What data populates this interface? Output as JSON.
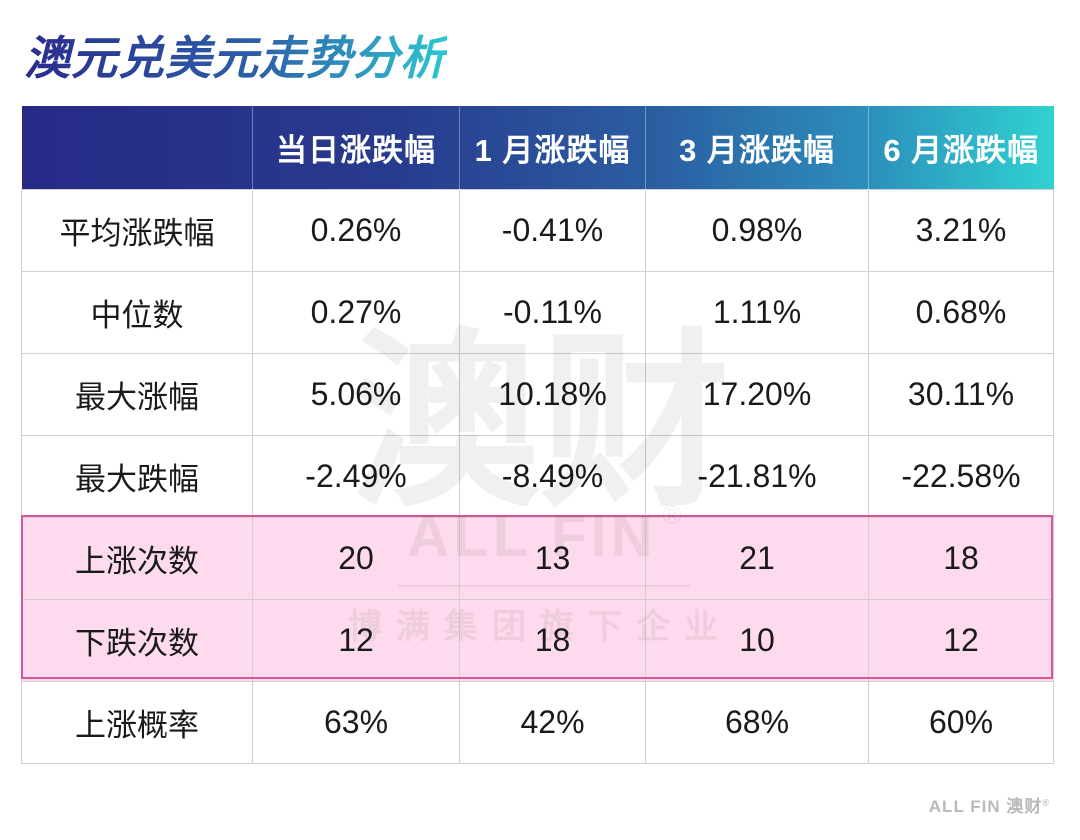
{
  "title": "澳元兑美元走势分析",
  "table": {
    "header": [
      "",
      "当日涨跌幅",
      "1 月涨跌幅",
      "3 月涨跌幅",
      "6 月涨跌幅"
    ],
    "rows": [
      {
        "label": "平均涨跌幅",
        "values": [
          "0.26%",
          "-0.41%",
          "0.98%",
          "3.21%"
        ],
        "highlight": false
      },
      {
        "label": "中位数",
        "values": [
          "0.27%",
          "-0.11%",
          "1.11%",
          "0.68%"
        ],
        "highlight": false
      },
      {
        "label": "最大涨幅",
        "values": [
          "5.06%",
          "10.18%",
          "17.20%",
          "30.11%"
        ],
        "highlight": false
      },
      {
        "label": "最大跌幅",
        "values": [
          "-2.49%",
          "-8.49%",
          "-21.81%",
          "-22.58%"
        ],
        "highlight": false
      },
      {
        "label": "上涨次数",
        "values": [
          "20",
          "13",
          "21",
          "18"
        ],
        "highlight": true
      },
      {
        "label": "下跌次数",
        "values": [
          "12",
          "18",
          "10",
          "12"
        ],
        "highlight": true
      },
      {
        "label": "上涨概率",
        "values": [
          "63%",
          "42%",
          "68%",
          "60%"
        ],
        "highlight": false
      }
    ]
  },
  "watermark": {
    "logo_text": "澳财",
    "brand_text": "ALL FIN",
    "registered": "®",
    "tagline": "博满集团旗下企业"
  },
  "footer": {
    "logo_text": "ALL FIN 澳财",
    "registered": "®"
  },
  "colors": {
    "title_gradient_start": "#2a2c8c",
    "title_gradient_end": "#2ec6cf",
    "header_gradient_start": "#262a86",
    "header_gradient_end": "#30d2d0",
    "highlight_fill": "#fcd0e8",
    "highlight_border": "#d8579b"
  }
}
